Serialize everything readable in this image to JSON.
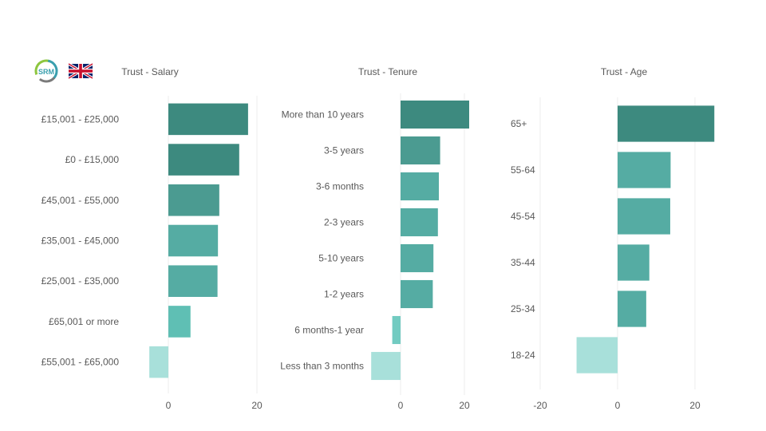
{
  "logo": {
    "text": "SRM",
    "ring_colors": [
      "#8dc63f",
      "#3a9fae",
      "#6b6b6b"
    ]
  },
  "flag": {
    "name": "uk-flag-icon"
  },
  "colors": {
    "axis_text": "#595959",
    "title_text": "#595959",
    "grid": "#ececec",
    "scale": [
      "#a8e0da",
      "#72cbc1",
      "#5fbfb4",
      "#55aca3",
      "#4b9b91",
      "#3d8a7f"
    ]
  },
  "chart_data": [
    {
      "type": "bar",
      "orientation": "horizontal",
      "title": "Trust - Salary",
      "categories": [
        "£15,001 - £25,000",
        "£0 - £15,000",
        "£45,001 - £55,000",
        "£35,001 - £45,000",
        "£25,001 - £35,000",
        "£65,001 or more",
        "£55,001 - £65,000"
      ],
      "values": [
        18,
        16,
        11.5,
        11.2,
        11.1,
        5,
        -4.3
      ],
      "xlim": [
        -5,
        21
      ],
      "ticks": [
        0,
        20
      ],
      "tick_labels": [
        "0",
        "20"
      ],
      "grid": true
    },
    {
      "type": "bar",
      "orientation": "horizontal",
      "title": "Trust - Tenure",
      "categories": [
        "More than 10 years",
        "3-5 years",
        "3-6 months",
        "2-3 years",
        "5-10 years",
        "1-2 years",
        "6 months-1 year",
        "Less than 3 months"
      ],
      "values": [
        21.5,
        12.4,
        12,
        11.7,
        10.3,
        10.1,
        -2.6,
        -9.2
      ],
      "xlim": [
        -10,
        23
      ],
      "ticks": [
        0,
        20
      ],
      "tick_labels": [
        "0",
        "20"
      ],
      "grid": true
    },
    {
      "type": "bar",
      "orientation": "horizontal",
      "title": "Trust - Age",
      "categories": [
        "65+",
        "55-64",
        "45-54",
        "35-44",
        "25-34",
        "18-24"
      ],
      "values": [
        25,
        13.7,
        13.6,
        8.2,
        7.4,
        -10.6
      ],
      "xlim": [
        -20,
        27
      ],
      "ticks": [
        -20,
        0,
        20
      ],
      "tick_labels": [
        "-20",
        "0",
        "20"
      ],
      "grid": true
    }
  ]
}
